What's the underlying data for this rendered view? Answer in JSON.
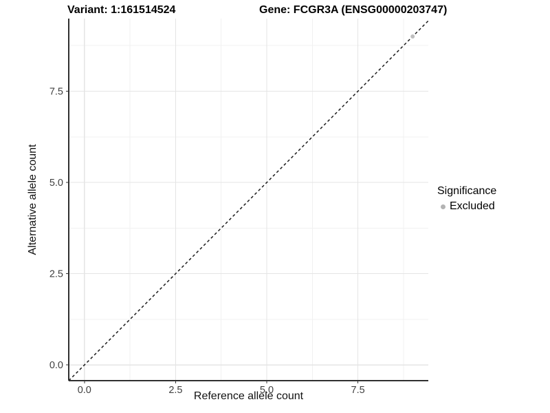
{
  "header": {
    "variant_title": "Variant: 1:161514524",
    "gene_title": "Gene: FCGR3A (ENSG00000203747)"
  },
  "chart_data": {
    "type": "scatter",
    "title": "Variant: 1:161514524 — Gene: FCGR3A (ENSG00000203747)",
    "xlabel": "Reference allele count",
    "ylabel": "Alternative allele count",
    "xlim": [
      -0.43,
      9.43
    ],
    "ylim": [
      -0.43,
      9.49
    ],
    "x_ticks": {
      "values": [
        0,
        2.5,
        5,
        7.5
      ],
      "labels": [
        "0.0",
        "2.5",
        "5.0",
        "7.5"
      ]
    },
    "y_ticks": {
      "values": [
        0,
        2.5,
        5,
        7.5
      ],
      "labels": [
        "0.0",
        "2.5",
        "5.0",
        "7.5"
      ]
    },
    "grid": {
      "major": true,
      "minor": true
    },
    "reference_line": {
      "slope": 1,
      "intercept": 0,
      "style": "dashed",
      "color": "#1a1a1a"
    },
    "series": [
      {
        "name": "Excluded",
        "color": "#bebebe",
        "points": [
          {
            "x": 9,
            "y": 9
          }
        ]
      }
    ],
    "legend": {
      "title": "Significance",
      "position": "right",
      "items": [
        {
          "label": "Excluded",
          "color": "#b3b3b3",
          "marker": "circle-icon"
        }
      ]
    },
    "colors": {
      "axis_line": "#2f2f2f",
      "grid_major": "#e4e4e4",
      "grid_minor": "#f1f1f1",
      "tick_mark": "#333333",
      "tick_text": "#404040",
      "background": "#ffffff"
    }
  }
}
